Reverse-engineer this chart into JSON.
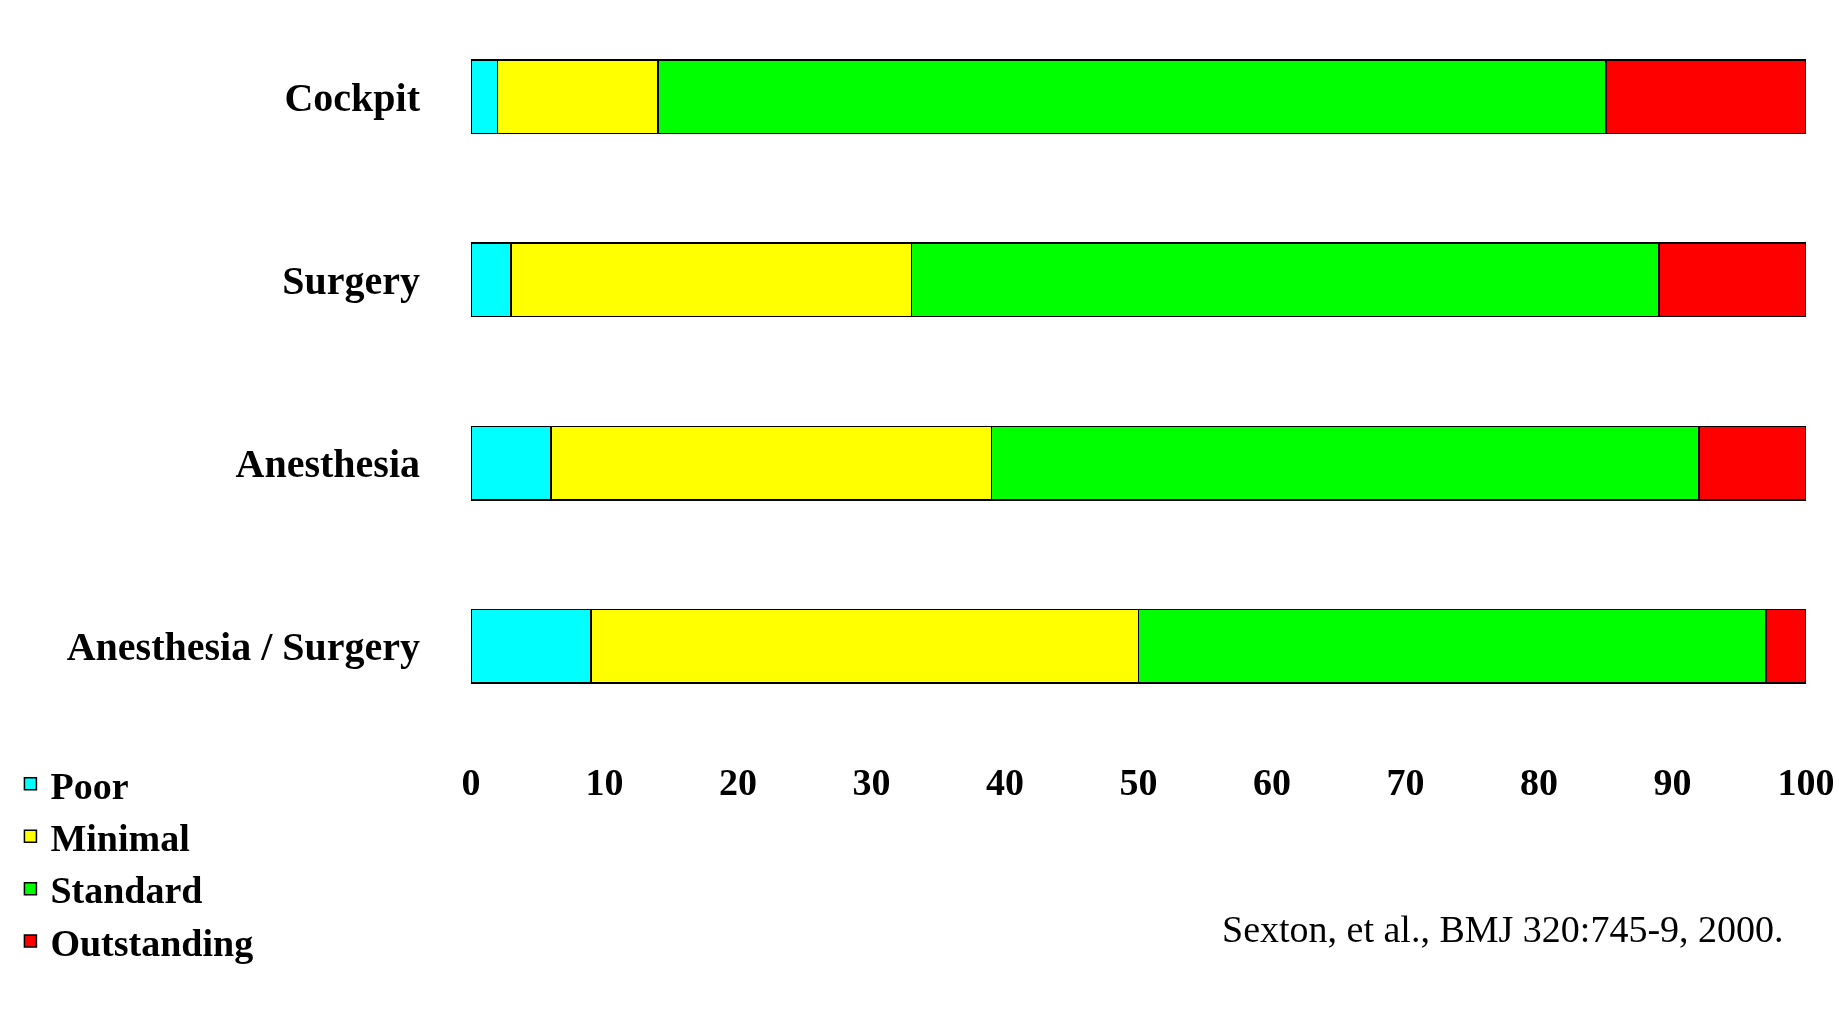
{
  "chart_data": {
    "type": "bar",
    "orientation": "horizontal",
    "stacked": true,
    "categories": [
      "Cockpit",
      "Surgery",
      "Anesthesia",
      "Anesthesia / Surgery"
    ],
    "series": [
      {
        "name": "Poor",
        "color": "#00ffff",
        "values": [
          2,
          3,
          6,
          9
        ]
      },
      {
        "name": "Minimal",
        "color": "#ffff00",
        "values": [
          12,
          30,
          33,
          41
        ]
      },
      {
        "name": "Standard",
        "color": "#00ff00",
        "values": [
          71,
          56,
          53,
          47
        ]
      },
      {
        "name": "Outstanding",
        "color": "#ff0000",
        "values": [
          15,
          11,
          8,
          3
        ]
      }
    ],
    "xlim": [
      0,
      100
    ],
    "xticks": [
      0,
      10,
      20,
      30,
      40,
      50,
      60,
      70,
      80,
      90,
      100
    ],
    "grid": false,
    "legend": "bottom left",
    "annotations": [
      "Sexton, et al., BMJ 320:745-9, 2000."
    ]
  }
}
